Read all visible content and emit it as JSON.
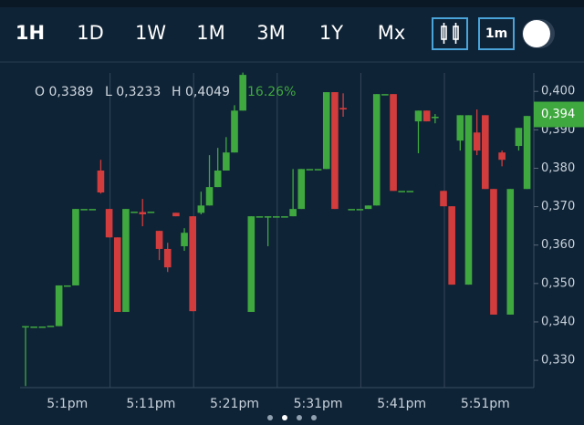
{
  "tabs": [
    "1H",
    "1D",
    "1W",
    "1M",
    "3M",
    "1Y",
    "Mx"
  ],
  "interval_button": "1m",
  "chart_data": {
    "type": "candlestick",
    "annotations": [
      "O 0,3389",
      "L 0,3233",
      "H 0,4049"
    ],
    "change_label": "16.26%",
    "last_price": {
      "value": 0.394,
      "label": "0,394"
    },
    "up_color": "#3fa83f",
    "down_color": "#d33c3c",
    "categories": [
      null,
      null,
      null,
      null,
      null,
      "5:1pm",
      null,
      null,
      null,
      null,
      null,
      null,
      null,
      null,
      null,
      "5:11pm",
      null,
      null,
      null,
      null,
      null,
      null,
      null,
      null,
      null,
      "5:21pm",
      null,
      null,
      null,
      null,
      null,
      null,
      null,
      null,
      null,
      "5:31pm",
      null,
      null,
      null,
      null,
      null,
      null,
      null,
      null,
      null,
      "5:41pm",
      null,
      null,
      null,
      null,
      null,
      null,
      null,
      null,
      null,
      "5:51pm",
      null,
      null,
      null,
      null,
      null
    ],
    "open": [
      0.3389,
      0.3388,
      0.3388,
      0.339,
      0.3389,
      0.3495,
      0.3495,
      0.3694,
      0.3694,
      0.3794,
      0.3694,
      0.362,
      0.3426,
      0.3687,
      0.3686,
      0.3687,
      0.3637,
      0.359,
      0.3684,
      0.3597,
      0.3675,
      0.3684,
      0.3703,
      0.3751,
      0.3794,
      0.3841,
      0.395,
      0.3426,
      0.3675,
      0.3675,
      0.3675,
      0.3675,
      0.3675,
      0.3694,
      0.3798,
      0.3798,
      0.3798,
      0.3998,
      0.3957,
      0.3694,
      0.3694,
      0.3694,
      0.3703,
      0.3993,
      0.3993,
      0.3741,
      0.3741,
      0.3922,
      0.395,
      0.3934,
      0.3741,
      0.3701,
      0.3872,
      0.3497,
      0.3893,
      0.3938,
      0.3746,
      0.3841,
      0.3419,
      0.3858,
      0.3746
    ],
    "high": [
      0.3389,
      0.3388,
      0.3388,
      0.339,
      0.3495,
      0.3495,
      0.3694,
      0.3694,
      0.3694,
      0.3822,
      0.3694,
      0.362,
      0.3694,
      0.3687,
      0.372,
      0.3687,
      0.3637,
      0.3606,
      0.3684,
      0.3644,
      0.3675,
      0.3739,
      0.3834,
      0.3853,
      0.3881,
      0.3964,
      0.4049,
      0.3675,
      0.3675,
      0.3675,
      0.3675,
      0.3675,
      0.3798,
      0.3798,
      0.3798,
      0.3798,
      0.3998,
      0.3998,
      0.3995,
      0.3694,
      0.3694,
      0.3703,
      0.3993,
      0.3993,
      0.3993,
      0.3741,
      0.3741,
      0.395,
      0.395,
      0.3941,
      0.3741,
      0.3701,
      0.3938,
      0.3938,
      0.3953,
      0.3938,
      0.3746,
      0.3846,
      0.3746,
      0.3905,
      0.3936
    ],
    "low": [
      0.3233,
      0.3388,
      0.3388,
      0.339,
      0.3389,
      0.3495,
      0.3495,
      0.3694,
      0.3694,
      0.3734,
      0.362,
      0.3426,
      0.3426,
      0.3687,
      0.3649,
      0.3687,
      0.3561,
      0.353,
      0.3675,
      0.3585,
      0.3428,
      0.368,
      0.3703,
      0.3751,
      0.3794,
      0.3841,
      0.395,
      0.3426,
      0.3675,
      0.3597,
      0.3675,
      0.3675,
      0.3675,
      0.3694,
      0.3798,
      0.3798,
      0.3798,
      0.3694,
      0.3934,
      0.3694,
      0.3694,
      0.3694,
      0.3703,
      0.3993,
      0.3741,
      0.3741,
      0.3741,
      0.3839,
      0.3922,
      0.3917,
      0.3701,
      0.3497,
      0.3846,
      0.3497,
      0.3834,
      0.3746,
      0.3419,
      0.3805,
      0.3419,
      0.3846,
      0.3746
    ],
    "close": [
      0.3389,
      0.3388,
      0.3388,
      0.339,
      0.3495,
      0.3495,
      0.3694,
      0.3694,
      0.3694,
      0.3737,
      0.362,
      0.3426,
      0.3694,
      0.3687,
      0.368,
      0.3687,
      0.359,
      0.3542,
      0.3675,
      0.3632,
      0.3428,
      0.3703,
      0.3751,
      0.3794,
      0.3841,
      0.395,
      0.4043,
      0.3675,
      0.3675,
      0.3675,
      0.3675,
      0.3675,
      0.3694,
      0.3798,
      0.3798,
      0.3798,
      0.3998,
      0.3694,
      0.3953,
      0.3694,
      0.3694,
      0.3703,
      0.3993,
      0.3993,
      0.3741,
      0.3741,
      0.3741,
      0.395,
      0.3922,
      0.3934,
      0.3701,
      0.3497,
      0.3938,
      0.3938,
      0.3846,
      0.3746,
      0.3419,
      0.3822,
      0.3746,
      0.3905,
      0.3936
    ],
    "ylim": [
      0.3229,
      0.4048
    ],
    "yticks": [
      {
        "value": 0.33,
        "label": "0,330"
      },
      {
        "value": 0.34,
        "label": "0,340"
      },
      {
        "value": 0.35,
        "label": "0,350"
      },
      {
        "value": 0.36,
        "label": "0,360"
      },
      {
        "value": 0.37,
        "label": "0,370"
      },
      {
        "value": 0.38,
        "label": "0,380"
      },
      {
        "value": 0.39,
        "label": "0,390"
      },
      {
        "value": 0.4,
        "label": "0,400"
      }
    ],
    "grid": true
  }
}
